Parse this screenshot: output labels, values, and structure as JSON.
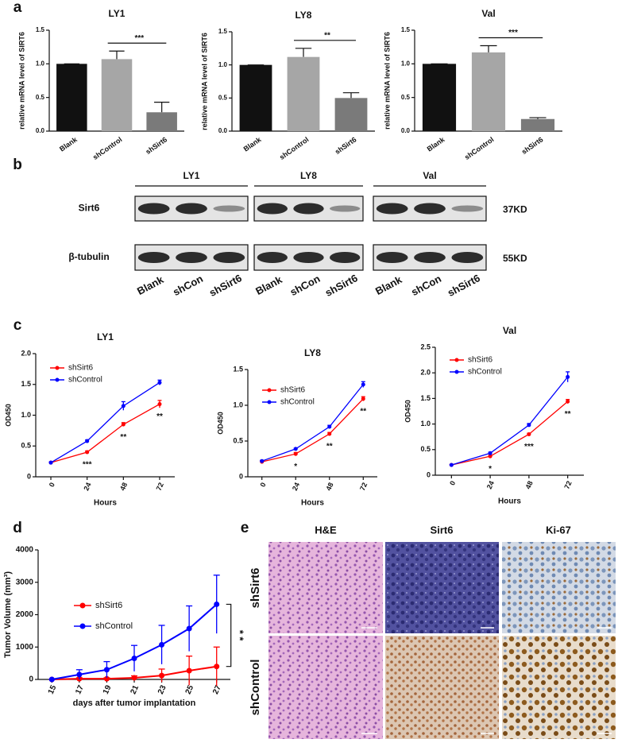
{
  "panel_labels": [
    "a",
    "b",
    "c",
    "d",
    "e"
  ],
  "chart_data": [
    {
      "type": "bar",
      "title": "LY1",
      "ylabel": "relative mRNA level of SIRT6",
      "categories": [
        "Blank",
        "shControl",
        "shSirt6"
      ],
      "values": [
        1.0,
        1.07,
        0.28
      ],
      "errors": [
        0,
        0.12,
        0.15
      ],
      "colors": [
        "#111111",
        "#a6a6a6",
        "#7a7a7a"
      ],
      "ylim": [
        0,
        1.5
      ],
      "yticks": [
        {
          "value": 0,
          "label": "0.0"
        },
        0.5,
        {
          "value": 1,
          "label": "1.0"
        },
        1.5
      ],
      "significance": "***"
    },
    {
      "type": "bar",
      "title": "LY8",
      "ylabel": "relative mRNA level of SIRT6",
      "categories": [
        "Blank",
        "shControl",
        "shSirt6"
      ],
      "values": [
        1.0,
        1.12,
        0.5
      ],
      "errors": [
        0,
        0.13,
        0.08
      ],
      "colors": [
        "#111111",
        "#a6a6a6",
        "#7a7a7a"
      ],
      "ylim": [
        0,
        1.5
      ],
      "yticks": [
        {
          "value": 0,
          "label": "0.0"
        },
        0.5,
        {
          "value": 1,
          "label": "1.0"
        },
        1.5
      ],
      "significance": "**"
    },
    {
      "type": "bar",
      "title": "Val",
      "ylabel": "relative mRNA level of SIRT6",
      "categories": [
        "Blank",
        "shControl",
        "shSirt6"
      ],
      "values": [
        1.0,
        1.17,
        0.18
      ],
      "errors": [
        0,
        0.1,
        0.02
      ],
      "colors": [
        "#111111",
        "#a6a6a6",
        "#7a7a7a"
      ],
      "ylim": [
        0,
        1.5
      ],
      "yticks": [
        {
          "value": 0,
          "label": "0.0"
        },
        0.5,
        {
          "value": 1,
          "label": "1.0"
        },
        1.5
      ],
      "significance": "***"
    },
    {
      "type": "line",
      "title": "LY1",
      "xlabel": "Hours",
      "ylabel": "OD450",
      "x": [
        0,
        24,
        48,
        72
      ],
      "xlim": [
        -10,
        82
      ],
      "xticks": [
        0,
        24,
        48,
        72
      ],
      "ylim": [
        0,
        2
      ],
      "yticks": [
        0,
        0.5,
        {
          "value": 1,
          "label": "1.0"
        },
        1.5,
        {
          "value": 2,
          "label": "2.0"
        }
      ],
      "legend": "upper left",
      "series": [
        {
          "name": "shSirt6",
          "color": "#ff0000",
          "values": [
            0.23,
            0.4,
            0.85,
            1.18
          ],
          "errors": [
            0.01,
            0.02,
            0.03,
            0.06
          ]
        },
        {
          "name": "shControl",
          "color": "#0000ff",
          "values": [
            0.23,
            0.58,
            1.15,
            1.53
          ],
          "errors": [
            0.01,
            0.02,
            0.07,
            0.04
          ]
        }
      ],
      "significance": [
        null,
        "***",
        "**",
        "**"
      ]
    },
    {
      "type": "line",
      "title": "LY8",
      "xlabel": "Hours",
      "ylabel": "OD450",
      "x": [
        0,
        24,
        48,
        72
      ],
      "xlim": [
        -10,
        82
      ],
      "xticks": [
        0,
        24,
        48,
        72
      ],
      "ylim": [
        0,
        1.5
      ],
      "yticks": [
        0,
        0.5,
        {
          "value": 1,
          "label": "1.0"
        },
        1.5
      ],
      "legend": "upper left",
      "series": [
        {
          "name": "shSirt6",
          "color": "#ff0000",
          "values": [
            0.21,
            0.32,
            0.6,
            1.09
          ],
          "errors": [
            0.01,
            0.02,
            0.02,
            0.03
          ]
        },
        {
          "name": "shControl",
          "color": "#0000ff",
          "values": [
            0.22,
            0.39,
            0.7,
            1.29
          ],
          "errors": [
            0.01,
            0.01,
            0.02,
            0.04
          ]
        }
      ],
      "significance": [
        null,
        "*",
        "**",
        "**"
      ]
    },
    {
      "type": "line",
      "title": "Val",
      "xlabel": "Hours",
      "ylabel": "OD450",
      "x": [
        0,
        24,
        48,
        72
      ],
      "xlim": [
        -10,
        82
      ],
      "xticks": [
        0,
        24,
        48,
        72
      ],
      "ylim": [
        0,
        2.5
      ],
      "yticks": [
        0,
        0.5,
        {
          "value": 1,
          "label": "1.0"
        },
        1.5,
        {
          "value": 2,
          "label": "2.0"
        },
        2.5
      ],
      "legend": "upper left",
      "series": [
        {
          "name": "shSirt6",
          "color": "#ff0000",
          "values": [
            0.2,
            0.37,
            0.8,
            1.44
          ],
          "errors": [
            0.01,
            0.02,
            0.02,
            0.04
          ]
        },
        {
          "name": "shControl",
          "color": "#0000ff",
          "values": [
            0.2,
            0.43,
            0.98,
            1.92
          ],
          "errors": [
            0.01,
            0.02,
            0.03,
            0.1
          ]
        }
      ],
      "significance": [
        null,
        "*",
        "***",
        "**"
      ]
    },
    {
      "type": "line",
      "xlabel": "days after tumor implantation",
      "ylabel": "Tumor Volume (mm³)",
      "x": [
        15,
        17,
        19,
        21,
        23,
        25,
        27
      ],
      "xlim": [
        14,
        28
      ],
      "xticks": [
        15,
        17,
        19,
        21,
        23,
        25,
        27
      ],
      "ylim": [
        0,
        4000
      ],
      "yticks": [
        0,
        1000,
        2000,
        3000,
        4000
      ],
      "legend": "upper left",
      "series": [
        {
          "name": "shSirt6",
          "color": "#ff0000",
          "values": [
            0,
            20,
            20,
            50,
            120,
            270,
            400
          ],
          "errors": [
            0,
            30,
            30,
            60,
            200,
            450,
            600
          ]
        },
        {
          "name": "shControl",
          "color": "#0000ff",
          "values": [
            0,
            150,
            300,
            650,
            1070,
            1570,
            2320
          ],
          "errors": [
            0,
            150,
            250,
            400,
            600,
            700,
            900
          ]
        }
      ],
      "bracket": "* *"
    }
  ],
  "western_blot": {
    "groups": [
      "LY1",
      "LY8",
      "Val"
    ],
    "lanes": [
      "Blank",
      "shCon",
      "shSirt6"
    ],
    "rows": [
      {
        "label": "Sirt6",
        "size": "37KD"
      },
      {
        "label": "β-tubulin",
        "size": "55KD"
      }
    ]
  },
  "histology": {
    "columns": [
      "H&E",
      "Sirt6",
      "Ki-67"
    ],
    "rows": [
      "shSirt6",
      "shControl"
    ]
  }
}
